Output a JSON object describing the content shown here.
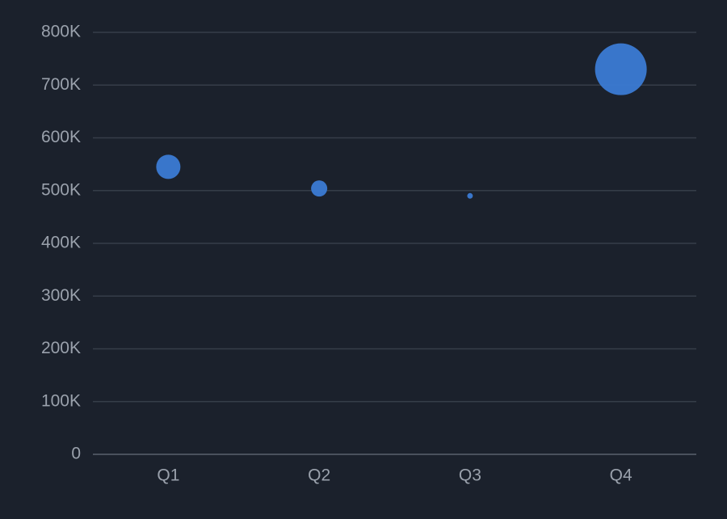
{
  "chart_data": {
    "type": "bubble",
    "categories": [
      "Q1",
      "Q2",
      "Q3",
      "Q4"
    ],
    "values": [
      545000,
      504000,
      490000,
      730000
    ],
    "sizes": [
      225,
      100,
      12,
      1024
    ],
    "color": "#3b7bd4",
    "ylim": [
      0,
      800000
    ],
    "yticks": [
      0,
      {
        "value": 100000,
        "label": "100K"
      },
      {
        "value": 200000,
        "label": "200K"
      },
      {
        "value": 300000,
        "label": "300K"
      },
      {
        "value": 400000,
        "label": "400K"
      },
      {
        "value": 500000,
        "label": "500K"
      },
      {
        "value": 600000,
        "label": "600K"
      },
      {
        "value": 700000,
        "label": "700K"
      },
      {
        "value": 800000,
        "label": "800K"
      }
    ],
    "grid": true
  }
}
